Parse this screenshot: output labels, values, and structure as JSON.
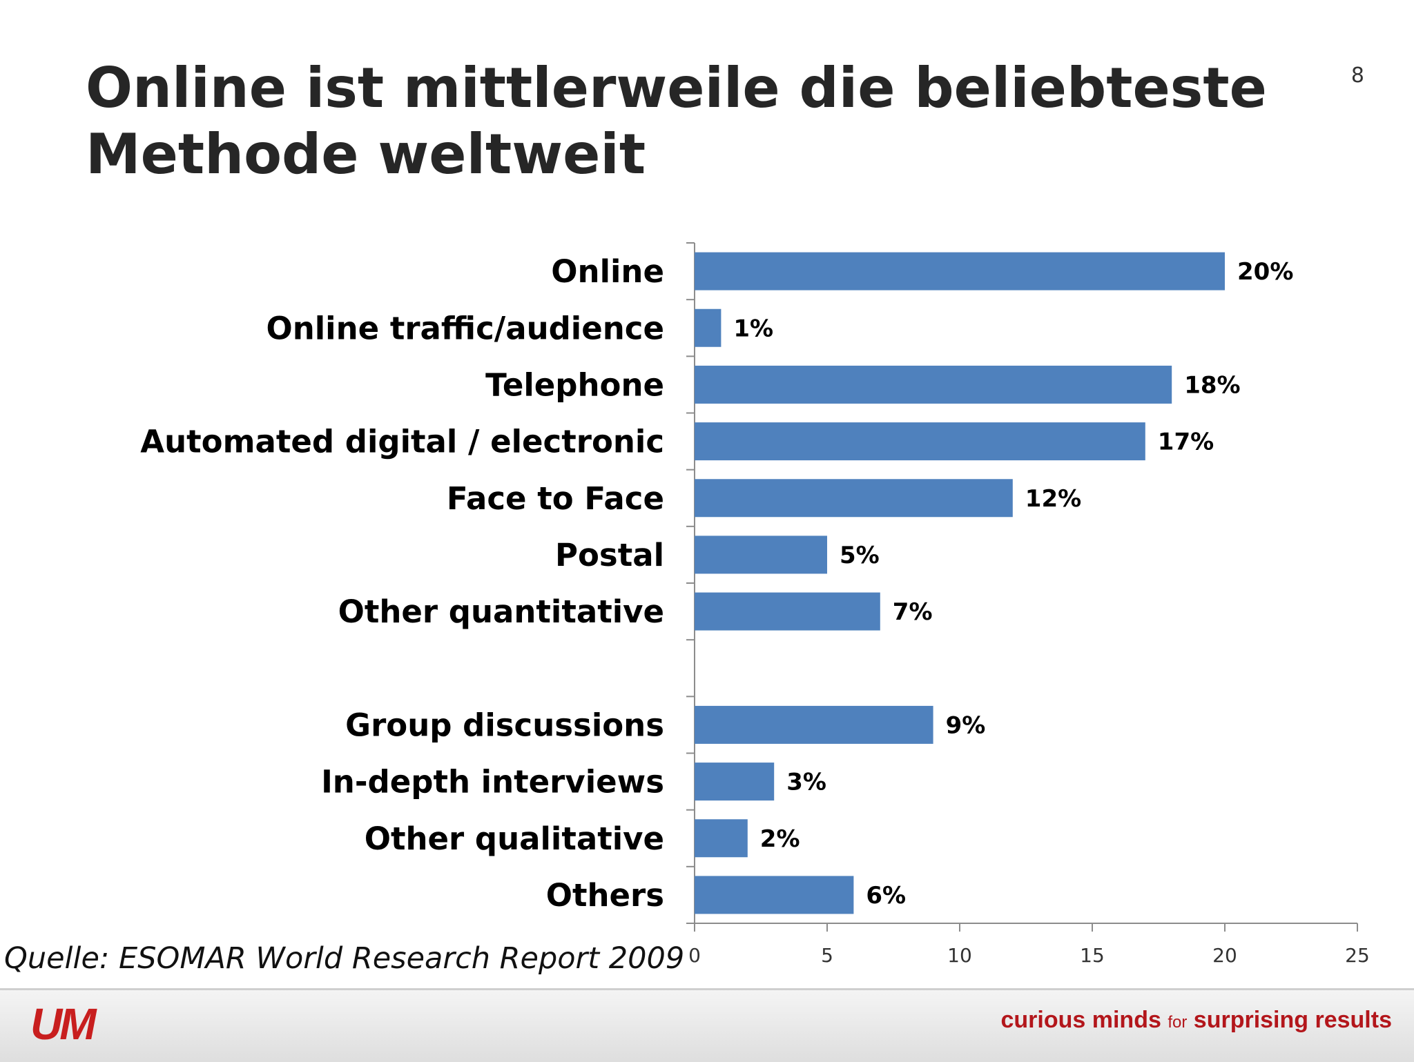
{
  "slide": {
    "title_line1": "Online ist mittlerweile die beliebteste",
    "title_line2": "Methode weltweit",
    "page_number": "8",
    "source": "Quelle: ESOMAR World Research Report 2009"
  },
  "footer": {
    "logo_text": "UM",
    "tagline_part1": "curious minds",
    "tagline_part2": "for",
    "tagline_part3": "surprising results",
    "brand_color": "#c81e1e"
  },
  "chart_data": {
    "type": "bar",
    "orientation": "horizontal",
    "categories": [
      "Online",
      "Online traffic/audience",
      "Telephone",
      "Automated digital / electronic",
      "Face to Face",
      "Postal",
      "Other quantitative",
      "",
      "Group discussions",
      "In-depth interviews",
      "Other qualitative",
      "Others"
    ],
    "values": [
      20,
      1,
      18,
      17,
      12,
      5,
      7,
      null,
      9,
      3,
      2,
      6
    ],
    "data_labels": [
      "20%",
      "1%",
      "18%",
      "17%",
      "12%",
      "5%",
      "7%",
      "",
      "9%",
      "3%",
      "2%",
      "6%"
    ],
    "xlim": [
      0,
      25
    ],
    "x_ticks": [
      "0",
      "5",
      "10",
      "15",
      "20",
      "25"
    ],
    "bar_color": "#4f81bd",
    "grid": false,
    "legend": "none"
  }
}
